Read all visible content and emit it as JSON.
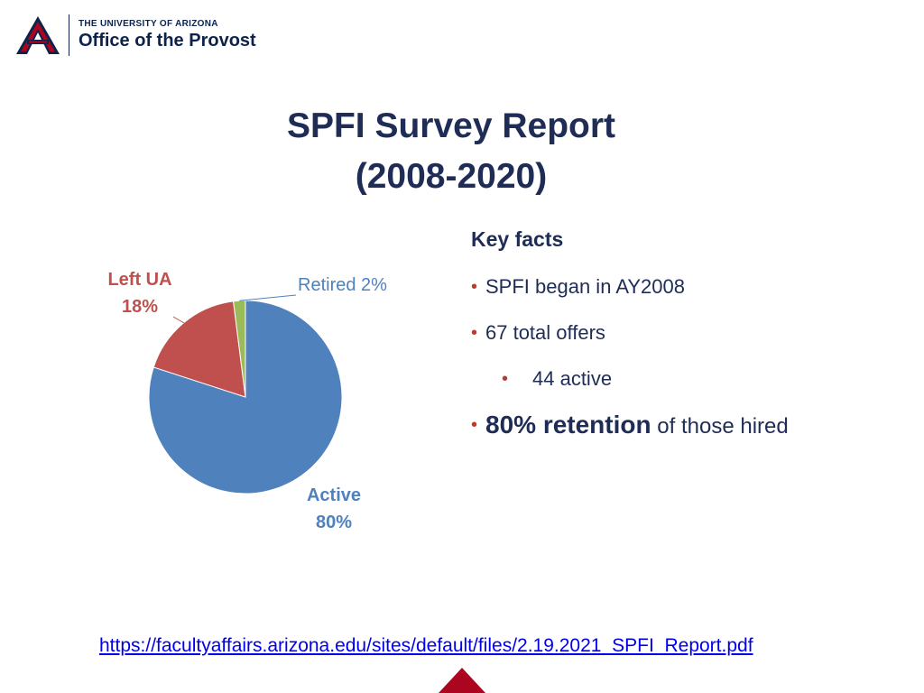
{
  "header": {
    "university": "THE UNIVERSITY OF ARIZONA",
    "office": "Office of the Provost"
  },
  "slide": {
    "title_line1": "SPFI Survey Report",
    "title_line2": "(2008-2020)"
  },
  "key_facts": {
    "heading": "Key facts",
    "items": [
      {
        "text": "SPFI began in AY2008"
      },
      {
        "text": "67 total offers"
      },
      {
        "text": "44 active"
      },
      {
        "strong": "80% retention",
        "rest": " of those hired"
      }
    ]
  },
  "link": {
    "text": "https://facultyaffairs.arizona.edu/sites/default/files/2.19.2021_SPFI_Report.pdf"
  },
  "colors": {
    "title": "#1f2d56",
    "bullet": "#c0392b",
    "brand_red": "#ab0520",
    "brand_navy": "#0c234b"
  },
  "chart_data": {
    "type": "pie",
    "slices": [
      {
        "label": "Active",
        "value": 80,
        "color": "#4f81bd",
        "label_text_1": "Active",
        "label_text_2": "80%"
      },
      {
        "label": "Left UA",
        "value": 18,
        "color": "#c0504d",
        "label_text_1": "Left UA",
        "label_text_2": "18%"
      },
      {
        "label": "Retired",
        "value": 2,
        "color": "#9bbb59",
        "label_text_1": "Retired 2%",
        "label_text_2": ""
      }
    ]
  }
}
